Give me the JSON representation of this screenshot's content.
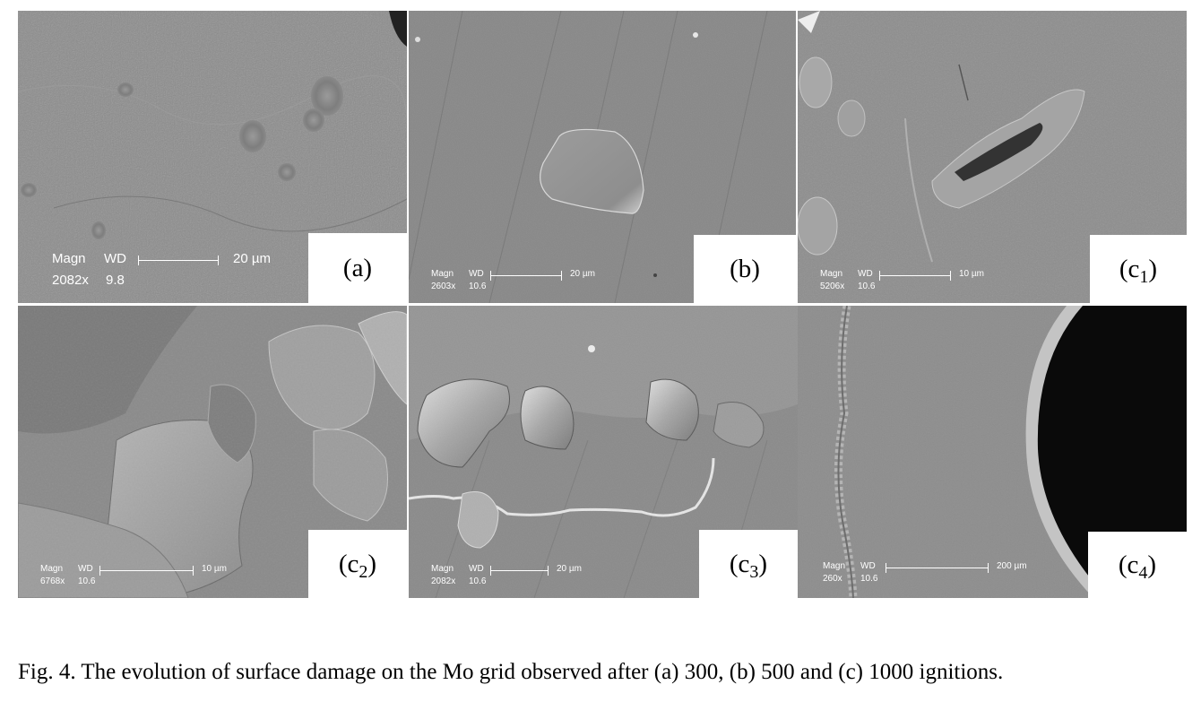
{
  "panels": [
    {
      "id": "a",
      "label": "(a)",
      "sub": "",
      "magn": "Magn",
      "wd": "WD",
      "mag_value": "2082x",
      "wd_value": "9.8",
      "scale": "20 µm"
    },
    {
      "id": "b",
      "label": "(b)",
      "sub": "",
      "magn": "Magn",
      "wd": "WD",
      "mag_value": "2603x",
      "wd_value": "10.6",
      "scale": "20 µm"
    },
    {
      "id": "c1",
      "label": "(c",
      "sub": "1",
      "close": ")",
      "magn": "Magn",
      "wd": "WD",
      "mag_value": "5206x",
      "wd_value": "10.6",
      "scale": "10 µm"
    },
    {
      "id": "c2",
      "label": "(c",
      "sub": "2",
      "close": ")",
      "magn": "Magn",
      "wd": "WD",
      "mag_value": "6768x",
      "wd_value": "10.6",
      "scale": "10 µm"
    },
    {
      "id": "c3",
      "label": "(c",
      "sub": "3",
      "close": ")",
      "magn": "Magn",
      "wd": "WD",
      "mag_value": "2082x",
      "wd_value": "10.6",
      "scale": "20 µm"
    },
    {
      "id": "c4",
      "label": "(c",
      "sub": "4",
      "close": ")",
      "magn": "Magn",
      "wd": "WD",
      "mag_value": "260x",
      "wd_value": "10.6",
      "scale": "200 µm"
    }
  ],
  "caption": "Fig. 4. The evolution of surface damage on the Mo grid observed after (a) 300, (b) 500 and (c) 1000 ignitions."
}
